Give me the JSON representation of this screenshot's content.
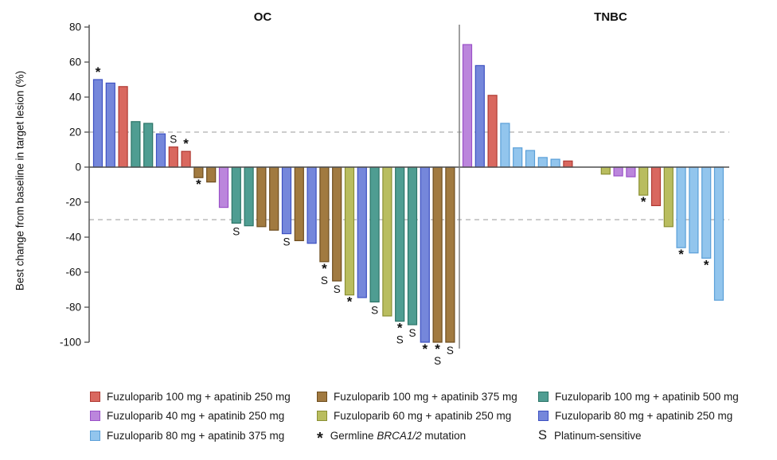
{
  "chart_data": {
    "type": "bar",
    "subtype": "waterfall",
    "ylabel": "Best change from baseline in target lesion (%)",
    "panel_titles": [
      "OC",
      "TNBC"
    ],
    "ylim": [
      -100,
      80
    ],
    "yticks": [
      80,
      60,
      40,
      20,
      0,
      -20,
      -40,
      -60,
      -80,
      -100
    ],
    "reference_lines": [
      20,
      -30
    ],
    "grid": "off",
    "legend_position": "bottom",
    "marker_meanings": {
      "*": "Germline BRCA1/2 mutation",
      "S": "Platinum-sensitive"
    },
    "groups": {
      "red": {
        "label": "Fuzuloparib 100 mg + apatinib 250 mg",
        "fill": "#D9685F",
        "border": "#B03A33"
      },
      "brown": {
        "label": "Fuzuloparib 100 mg + apatinib 375 mg",
        "fill": "#A17A40",
        "border": "#6E4D1E"
      },
      "teal": {
        "label": "Fuzuloparib 100 mg + apatinib 500 mg",
        "fill": "#4F9D92",
        "border": "#2C7568"
      },
      "purple": {
        "label": "Fuzuloparib 40 mg + apatinib 250 mg",
        "fill": "#BB86DC",
        "border": "#9A50C8"
      },
      "olive": {
        "label": "Fuzuloparib 60 mg + apatinib 250 mg",
        "fill": "#B9BD5F",
        "border": "#8A8F33"
      },
      "periwinkle": {
        "label": "Fuzuloparib 80 mg + apatinib 250 mg",
        "fill": "#7587DB",
        "border": "#3D51C2"
      },
      "lightblue": {
        "label": "Fuzuloparib 80 mg + apatinib 375 mg",
        "fill": "#92C5ED",
        "border": "#5A9FD8"
      }
    },
    "bars": {
      "oc": [
        {
          "value": 50,
          "group": "periwinkle",
          "mark": "*"
        },
        {
          "value": 48,
          "group": "periwinkle",
          "mark": ""
        },
        {
          "value": 46,
          "group": "red",
          "mark": ""
        },
        {
          "value": 26,
          "group": "teal",
          "mark": ""
        },
        {
          "value": 25,
          "group": "teal",
          "mark": ""
        },
        {
          "value": 19,
          "group": "periwinkle",
          "mark": ""
        },
        {
          "value": 11.5,
          "group": "red",
          "mark": "S"
        },
        {
          "value": 9,
          "group": "red",
          "mark": "*"
        },
        {
          "value": -6,
          "group": "brown",
          "mark": "*"
        },
        {
          "value": -8.5,
          "group": "brown",
          "mark": ""
        },
        {
          "value": -23,
          "group": "purple",
          "mark": ""
        },
        {
          "value": -32,
          "group": "teal",
          "mark": "S"
        },
        {
          "value": -33.5,
          "group": "teal",
          "mark": ""
        },
        {
          "value": -34,
          "group": "brown",
          "mark": ""
        },
        {
          "value": -36,
          "group": "brown",
          "mark": ""
        },
        {
          "value": -38,
          "group": "periwinkle",
          "mark": "S"
        },
        {
          "value": -42,
          "group": "brown",
          "mark": ""
        },
        {
          "value": -43.5,
          "group": "periwinkle",
          "mark": ""
        },
        {
          "value": -54,
          "group": "brown",
          "mark": "*S"
        },
        {
          "value": -65,
          "group": "brown",
          "mark": "S"
        },
        {
          "value": -73,
          "group": "olive",
          "mark": "*"
        },
        {
          "value": -74.5,
          "group": "periwinkle",
          "mark": ""
        },
        {
          "value": -77,
          "group": "teal",
          "mark": "S"
        },
        {
          "value": -85,
          "group": "olive",
          "mark": ""
        },
        {
          "value": -88,
          "group": "teal",
          "mark": "*S"
        },
        {
          "value": -90,
          "group": "teal",
          "mark": "S"
        },
        {
          "value": -100,
          "group": "periwinkle",
          "mark": "*"
        },
        {
          "value": -100,
          "group": "brown",
          "mark": "*S"
        },
        {
          "value": -100,
          "group": "brown",
          "mark": "S"
        }
      ],
      "tnbc": [
        {
          "value": 70,
          "group": "purple",
          "mark": ""
        },
        {
          "value": 58,
          "group": "periwinkle",
          "mark": ""
        },
        {
          "value": 41,
          "group": "red",
          "mark": ""
        },
        {
          "value": 25,
          "group": "lightblue",
          "mark": ""
        },
        {
          "value": 11,
          "group": "lightblue",
          "mark": ""
        },
        {
          "value": 9.5,
          "group": "lightblue",
          "mark": ""
        },
        {
          "value": 5.5,
          "group": "lightblue",
          "mark": ""
        },
        {
          "value": 4.5,
          "group": "lightblue",
          "mark": ""
        },
        {
          "value": 3.5,
          "group": "red",
          "mark": ""
        },
        {
          "value": 0,
          "group": null,
          "mark": ""
        },
        {
          "value": 0,
          "group": null,
          "mark": ""
        },
        {
          "value": -4,
          "group": "olive",
          "mark": ""
        },
        {
          "value": -5,
          "group": "purple",
          "mark": ""
        },
        {
          "value": -5.5,
          "group": "purple",
          "mark": ""
        },
        {
          "value": -16,
          "group": "olive",
          "mark": "*"
        },
        {
          "value": -22,
          "group": "red",
          "mark": ""
        },
        {
          "value": -34,
          "group": "olive",
          "mark": ""
        },
        {
          "value": -46,
          "group": "lightblue",
          "mark": "*"
        },
        {
          "value": -49,
          "group": "lightblue",
          "mark": ""
        },
        {
          "value": -52,
          "group": "lightblue",
          "mark": "*"
        },
        {
          "value": -76,
          "group": "lightblue",
          "mark": ""
        }
      ]
    }
  },
  "legend": {
    "brca": {
      "symbol": "*",
      "pre": "Germline ",
      "gene": "BRCA1/2",
      "post": " mutation"
    },
    "platinum": {
      "symbol": "S",
      "label": "Platinum-sensitive"
    }
  }
}
